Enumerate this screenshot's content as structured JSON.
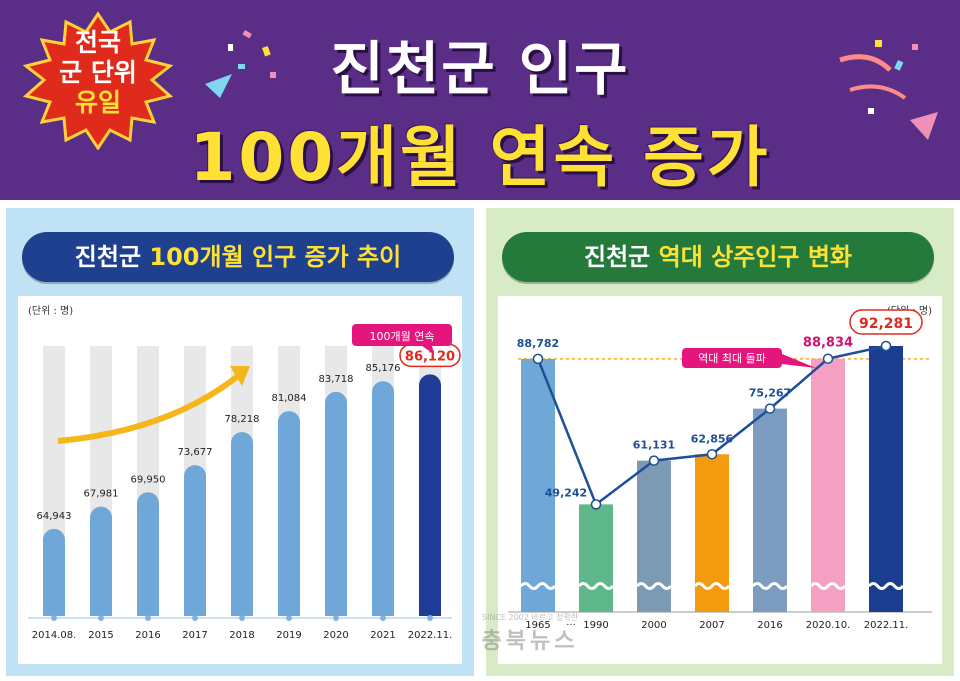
{
  "header": {
    "badge_line1": "전국",
    "badge_line2": "군 단위",
    "badge_line3": "유일",
    "title_line1": "진천군 인구",
    "title_line2": "100개월 연속 증가"
  },
  "colors": {
    "header_bg": "#5a2d86",
    "title_yellow": "#ffe135",
    "left_bar": "#6fa7d8",
    "left_highlight": "#1f3c96",
    "callout_pink": "#e4157d"
  },
  "left_panel": {
    "title_prefix": "진천군 ",
    "title_highlight": "100개월 인구 증가 추이",
    "unit": "(단위 : 명)",
    "callout": "100개월 연속"
  },
  "right_panel": {
    "title_prefix": "진천군 ",
    "title_highlight": "역대 상주인구 변화",
    "unit": "(단위 : 명)",
    "callout": "역대 최대 돌파",
    "ellipsis": "···"
  },
  "watermark": {
    "line1": "SINCE 2002 바르고 정확한",
    "line2": "충북뉴스"
  },
  "chart_data": [
    {
      "type": "bar",
      "title": "진천군 100개월 인구 증가 추이",
      "categories": [
        "2014.08.",
        "2015",
        "2016",
        "2017",
        "2018",
        "2019",
        "2020",
        "2021",
        "2022.11."
      ],
      "values": [
        64943,
        67981,
        69950,
        73677,
        78218,
        81084,
        83718,
        85176,
        86120
      ],
      "value_labels": [
        "64,943",
        "67,981",
        "69,950",
        "73,677",
        "78,218",
        "81,084",
        "83,718",
        "85,176",
        "86,120"
      ],
      "highlight_index": 8,
      "ylim": [
        53000,
        90000
      ],
      "grid": false
    },
    {
      "type": "bar",
      "title": "진천군 역대 상주인구 변화",
      "categories": [
        "1965",
        "1990",
        "2000",
        "2007",
        "2016",
        "2020.10.",
        "2022.11."
      ],
      "values": [
        88782,
        49242,
        61131,
        62856,
        75267,
        88834,
        92281
      ],
      "value_labels": [
        "88,782",
        "49,242",
        "61,131",
        "62,856",
        "75,267",
        "88,834",
        "92,281"
      ],
      "bar_colors": [
        "#6fa8d6",
        "#5fb88a",
        "#7d9ab3",
        "#f39a0e",
        "#7c9cbf",
        "#f3a0c3",
        "#1a3d8f"
      ],
      "reference_line": 88782,
      "ylim": [
        20000,
        95000
      ],
      "grid": false
    }
  ]
}
